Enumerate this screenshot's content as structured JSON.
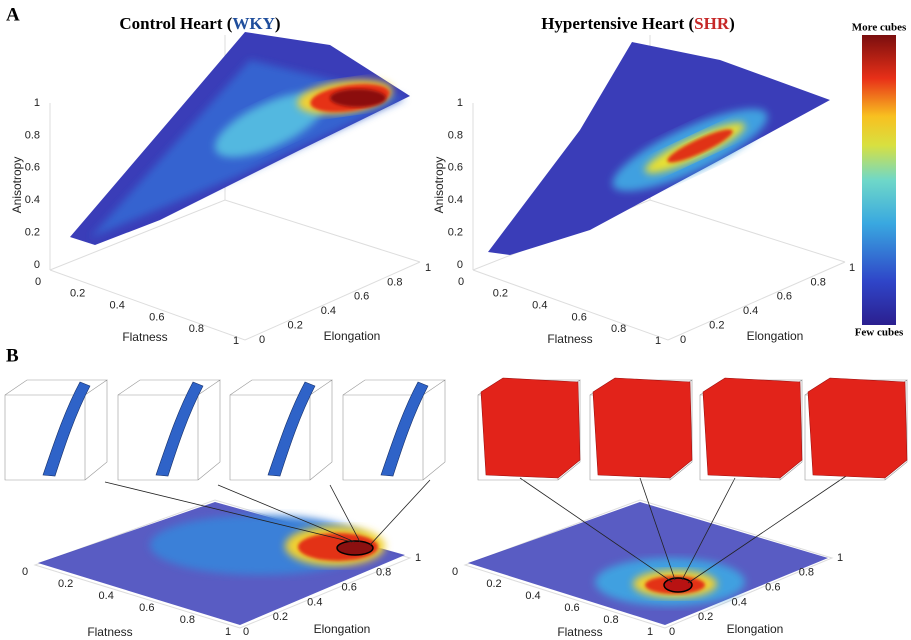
{
  "panels": [
    {
      "label": "A",
      "plots": [
        {
          "title": {
            "prefix": "Control Heart (",
            "highlight": "WKY",
            "suffix": ")"
          },
          "axes": {
            "z": {
              "label": "Anisotropy",
              "ticks": [
                0,
                0.2,
                0.4,
                0.6,
                0.8,
                1
              ]
            },
            "x": {
              "label": "Flatness",
              "ticks": [
                0,
                0.2,
                0.4,
                0.6,
                0.8,
                1
              ]
            },
            "y": {
              "label": "Elongation",
              "ticks": [
                0,
                0.2,
                0.4,
                0.6,
                0.8,
                1
              ]
            }
          }
        },
        {
          "title": {
            "prefix": "Hypertensive Heart (",
            "highlight": "SHR",
            "suffix": ")"
          },
          "axes": {
            "z": {
              "label": "Anisotropy",
              "ticks": [
                0,
                0.2,
                0.4,
                0.6,
                0.8,
                1
              ]
            },
            "x": {
              "label": "Flatness",
              "ticks": [
                0,
                0.2,
                0.4,
                0.6,
                0.8,
                1
              ]
            },
            "y": {
              "label": "Elongation",
              "ticks": [
                0,
                0.2,
                0.4,
                0.6,
                0.8,
                1
              ]
            }
          }
        }
      ]
    },
    {
      "label": "B",
      "plots": [
        {
          "axes": {
            "x": {
              "label": "Flatness",
              "ticks": [
                0,
                0.2,
                0.4,
                0.6,
                0.8,
                1
              ]
            },
            "y": {
              "label": "Elongation",
              "ticks": [
                0,
                0.2,
                0.4,
                0.6,
                0.8,
                1
              ]
            }
          }
        },
        {
          "axes": {
            "x": {
              "label": "Flatness",
              "ticks": [
                0,
                0.2,
                0.4,
                0.6,
                0.8,
                1
              ]
            },
            "y": {
              "label": "Elongation",
              "ticks": [
                0,
                0.2,
                0.4,
                0.6,
                0.8,
                1
              ]
            }
          }
        }
      ]
    }
  ],
  "colorbar": {
    "top": "More cubes",
    "bottom": "Few cubes"
  }
}
